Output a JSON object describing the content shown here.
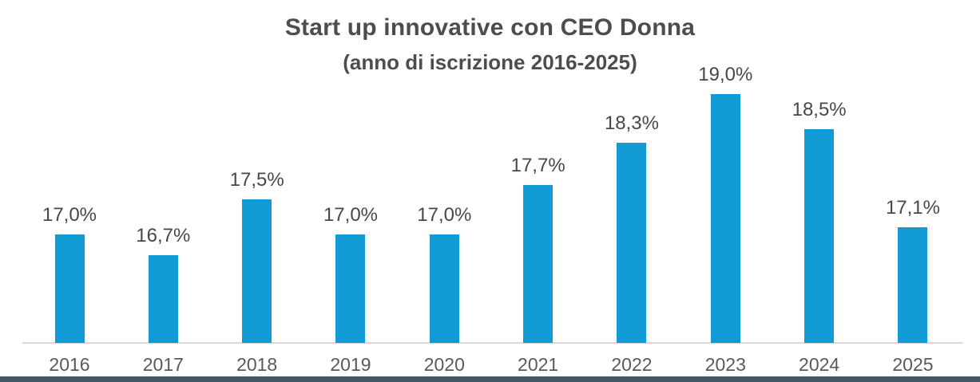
{
  "chart_data": {
    "type": "bar",
    "title": "Start up innovative con CEO Donna",
    "subtitle": "(anno di iscrizione 2016-2025)",
    "categories": [
      "2016",
      "2017",
      "2018",
      "2019",
      "2020",
      "2021",
      "2022",
      "2023",
      "2024",
      "2025"
    ],
    "values": [
      17.0,
      16.7,
      17.5,
      17.0,
      17.0,
      17.7,
      18.3,
      19.0,
      18.5,
      17.1
    ],
    "value_labels": [
      "17,0%",
      "16,7%",
      "17,5%",
      "17,0%",
      "17,0%",
      "17,7%",
      "18,3%",
      "19,0%",
      "18,5%",
      "17,1%"
    ],
    "xlabel": "",
    "ylabel": "",
    "ylim": [
      15.45,
      19.6
    ],
    "grid": false,
    "legend": false,
    "decimal_separator": ",",
    "unit": "%",
    "colors": {
      "bar": "#129AD5",
      "axis_line": "#D9D9D9",
      "value_label": "#474747",
      "tick_label": "#595959",
      "title": "#4D4D4D",
      "footer_strip": "#405A64",
      "background": "#FFFFFF"
    }
  }
}
